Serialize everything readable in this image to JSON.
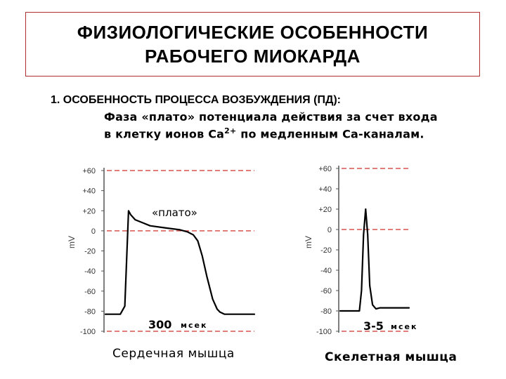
{
  "title": {
    "line1": "ФИЗИОЛОГИЧЕСКИЕ ОСОБЕННОСТИ",
    "line2": "РАБОЧЕГО МИОКАРДА"
  },
  "heading": "1. ОСОБЕННОСТЬ ПРОЦЕССА ВОЗБУЖДЕНИЯ  (ПД):",
  "description": {
    "line1": "Фаза «плато» потенциала действия за счет входа",
    "line2_before": "в клетку ионов Ca",
    "line2_sup": "2+",
    "line2_after": " по медленным Ca-каналам."
  },
  "colors": {
    "dashed": "#d9534f",
    "trace": "#000000",
    "axis": "#555555",
    "title_border": "#b03030"
  },
  "chart_data": [
    {
      "type": "line",
      "ylabel": "mV",
      "yticks": [
        60,
        40,
        20,
        0,
        -20,
        -40,
        -60,
        -80,
        -100
      ],
      "ytick_labels": [
        "+60",
        "+40",
        "+20",
        "0",
        "-20",
        "-40",
        "-60",
        "-80",
        "-100"
      ],
      "ylim": [
        -100,
        60
      ],
      "xlim": [
        0,
        1
      ],
      "dashed_levels": [
        60,
        0,
        -100
      ],
      "annotation": "«плато»",
      "duration_value": "300",
      "duration_unit": "мсек",
      "caption": "Сердечная мышца",
      "series": [
        {
          "x": [
            0,
            0.1,
            0.13,
            0.155,
            0.17,
            0.2,
            0.25,
            0.3,
            0.4,
            0.5,
            0.55,
            0.59,
            0.62,
            0.65,
            0.68,
            0.72,
            0.75,
            0.77,
            0.785,
            0.8,
            1.0
          ],
          "y": [
            -83,
            -83,
            -75,
            20,
            16,
            11,
            8,
            5,
            3,
            1,
            -1,
            -4,
            -10,
            -25,
            -45,
            -68,
            -78,
            -81,
            -82,
            -83,
            -83
          ]
        }
      ]
    },
    {
      "type": "line",
      "ylabel": "mV",
      "yticks": [
        60,
        40,
        20,
        0,
        -20,
        -40,
        -60,
        -80,
        -100
      ],
      "ytick_labels": [
        "+60",
        "+40",
        "+20",
        "0",
        "-20",
        "-40",
        "-60",
        "-80",
        "-100"
      ],
      "ylim": [
        -100,
        60
      ],
      "xlim": [
        0,
        1
      ],
      "dashed_levels": [
        60,
        0,
        -100
      ],
      "duration_value": "3-5",
      "duration_unit": "мсек",
      "caption": "Скелетная мышца",
      "series": [
        {
          "x": [
            0,
            0.28,
            0.31,
            0.34,
            0.37,
            0.4,
            0.43,
            0.47,
            0.52,
            0.58,
            0.66,
            1.0
          ],
          "y": [
            -80,
            -80,
            -60,
            -5,
            20,
            -5,
            -55,
            -74,
            -78,
            -77,
            -77,
            -77
          ]
        }
      ]
    }
  ]
}
